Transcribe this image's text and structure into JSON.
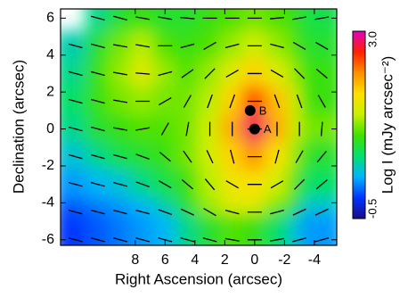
{
  "chart_data": {
    "type": "heatmap",
    "x_label": "Right Ascension (arcsec)",
    "y_label": "Declination (arcsec)",
    "colorbar_label": "Log I (mJy arcsec⁻²)",
    "xlim": [
      13,
      -5.5
    ],
    "ylim": [
      -6.3,
      6.5
    ],
    "xticks": [
      8,
      6,
      4,
      2,
      0,
      -2,
      -4
    ],
    "yticks": [
      6,
      4,
      2,
      0,
      -2,
      -4,
      -6
    ],
    "zlim": [
      -0.5,
      3
    ],
    "zticks": [
      -0.5,
      {
        "value": 3,
        "label": "3.0"
      }
    ],
    "colorscale": [
      "#1a0a8c",
      "#0033ff",
      "#00b4ff",
      "#00e070",
      "#40e000",
      "#c8f000",
      "#ffe000",
      "#ff9000",
      "#ff2000",
      "#e000c0"
    ],
    "vector_color": "#000000",
    "x": [
      12,
      10.5,
      9,
      7.5,
      6,
      4.5,
      3,
      1.5,
      0,
      -1.5,
      -3,
      -4.5
    ],
    "y": [
      6,
      4.5,
      3,
      1.5,
      0,
      -1.5,
      -3,
      -4.5,
      -6
    ],
    "intensity": [
      [
        null,
        0.6,
        0.9,
        1.0,
        0.9,
        0.9,
        1.0,
        1.1,
        1.2,
        1.1,
        1.0,
        0.8
      ],
      [
        0.5,
        0.9,
        1.2,
        1.4,
        1.1,
        1.0,
        1.1,
        1.3,
        1.5,
        1.3,
        1.1,
        0.9
      ],
      [
        0.6,
        1.0,
        1.3,
        1.6,
        1.3,
        1.1,
        1.3,
        1.6,
        1.9,
        1.6,
        1.3,
        1.0
      ],
      [
        0.7,
        1.0,
        1.2,
        1.3,
        1.2,
        1.2,
        1.4,
        1.9,
        2.5,
        2.0,
        1.5,
        1.0
      ],
      [
        0.6,
        0.9,
        1.0,
        1.1,
        1.1,
        1.2,
        1.5,
        2.1,
        2.8,
        2.1,
        1.5,
        1.2
      ],
      [
        0.4,
        0.6,
        0.8,
        0.9,
        1.0,
        1.2,
        1.5,
        1.9,
        2.2,
        1.8,
        1.3,
        0.9
      ],
      [
        0.2,
        0.3,
        0.4,
        0.6,
        0.8,
        1.0,
        1.4,
        1.7,
        1.8,
        1.5,
        1.1,
        0.7
      ],
      [
        0.0,
        0.1,
        0.2,
        0.3,
        0.5,
        0.9,
        1.3,
        1.6,
        1.6,
        1.2,
        0.9,
        0.4
      ],
      [
        -0.1,
        0.0,
        0.1,
        0.2,
        0.3,
        0.6,
        0.9,
        1.1,
        1.0,
        0.7,
        0.4,
        0.2
      ]
    ],
    "angles": [
      [
        null,
        -15,
        -15,
        -10,
        -10,
        -5,
        0,
        0,
        0,
        5,
        10,
        10
      ],
      [
        -15,
        -15,
        -10,
        -10,
        0,
        15,
        30,
        15,
        0,
        -15,
        -30,
        -30
      ],
      [
        -15,
        -15,
        -10,
        -5,
        15,
        35,
        45,
        30,
        0,
        -30,
        -45,
        -40
      ],
      [
        -15,
        -15,
        -10,
        0,
        30,
        60,
        70,
        70,
        0,
        -70,
        -70,
        -60
      ],
      [
        -15,
        -15,
        -10,
        10,
        60,
        80,
        90,
        90,
        0,
        90,
        90,
        85
      ],
      [
        -15,
        -15,
        -15,
        -20,
        -40,
        -55,
        -65,
        -75,
        0,
        75,
        60,
        50
      ],
      [
        -15,
        -15,
        -15,
        -20,
        -30,
        -40,
        -50,
        -30,
        0,
        30,
        45,
        40
      ],
      [
        -15,
        -15,
        -15,
        -15,
        -20,
        -25,
        -30,
        -15,
        0,
        15,
        25,
        25
      ],
      [
        -15,
        -15,
        -15,
        -15,
        -15,
        -15,
        -15,
        -10,
        0,
        10,
        15,
        15
      ]
    ],
    "annotations": [
      {
        "text": "A",
        "x": 0,
        "y": 0
      },
      {
        "text": "B",
        "x": 0.3,
        "y": 1.0
      }
    ]
  }
}
